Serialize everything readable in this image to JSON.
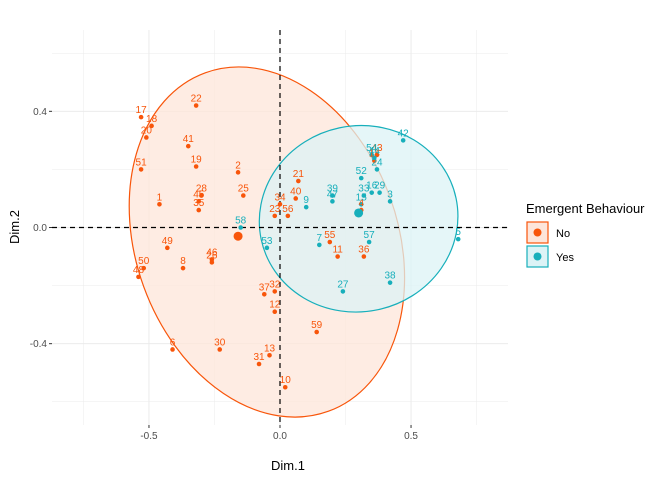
{
  "chart_data": {
    "type": "scatter",
    "xlabel": "Dim.1",
    "ylabel": "Dim.2",
    "xlim": [
      -0.87,
      0.87
    ],
    "ylim": [
      -0.68,
      0.68
    ],
    "x_ticks": [
      -0.5,
      0.0,
      0.5
    ],
    "x_tick_labels": [
      "-0.5",
      "0.0",
      "0.5"
    ],
    "y_ticks": [
      -0.4,
      0.0,
      0.4
    ],
    "y_tick_labels": [
      "-0.4",
      "0.0",
      "0.4"
    ],
    "grid": true,
    "reference_lines": {
      "x": 0,
      "y": 0,
      "style": "dashed"
    },
    "legend": {
      "title": "Emergent Behaviour",
      "position": "right",
      "entries": [
        {
          "label": "No",
          "color": "#F8550A",
          "fill": "#FDE5DA"
        },
        {
          "label": "Yes",
          "color": "#17AFBB",
          "fill": "#DCF3F6"
        }
      ]
    },
    "series": [
      {
        "name": "No",
        "color": "#F8550A",
        "centroid": [
          -0.16,
          -0.03
        ],
        "ellipse": {
          "center": [
            -0.05,
            -0.05
          ],
          "rx": 0.5,
          "ry": 0.62,
          "angle_deg": -20
        },
        "points": [
          {
            "label": "1",
            "x": -0.46,
            "y": 0.08
          },
          {
            "label": "2",
            "x": -0.16,
            "y": 0.19
          },
          {
            "label": "4",
            "x": 0.31,
            "y": 0.06
          },
          {
            "label": "6",
            "x": -0.41,
            "y": -0.42
          },
          {
            "label": "8",
            "x": -0.37,
            "y": -0.14
          },
          {
            "label": "10",
            "x": 0.02,
            "y": -0.55
          },
          {
            "label": "11",
            "x": 0.22,
            "y": -0.1
          },
          {
            "label": "12",
            "x": -0.02,
            "y": -0.29
          },
          {
            "label": "13",
            "x": -0.04,
            "y": -0.44
          },
          {
            "label": "14",
            "x": 0.36,
            "y": 0.23
          },
          {
            "label": "17",
            "x": -0.53,
            "y": 0.38
          },
          {
            "label": "18",
            "x": -0.49,
            "y": 0.35
          },
          {
            "label": "19",
            "x": -0.32,
            "y": 0.21
          },
          {
            "label": "20",
            "x": -0.51,
            "y": 0.31
          },
          {
            "label": "21",
            "x": 0.07,
            "y": 0.16
          },
          {
            "label": "22",
            "x": -0.32,
            "y": 0.42
          },
          {
            "label": "23",
            "x": -0.02,
            "y": 0.04
          },
          {
            "label": "25",
            "x": -0.14,
            "y": 0.11
          },
          {
            "label": "26",
            "x": -0.26,
            "y": -0.12
          },
          {
            "label": "28",
            "x": -0.3,
            "y": 0.11
          },
          {
            "label": "30",
            "x": -0.23,
            "y": -0.42
          },
          {
            "label": "31",
            "x": -0.08,
            "y": -0.47
          },
          {
            "label": "32",
            "x": -0.02,
            "y": -0.22
          },
          {
            "label": "34",
            "x": 0.0,
            "y": 0.08
          },
          {
            "label": "35",
            "x": -0.31,
            "y": 0.06
          },
          {
            "label": "36",
            "x": 0.32,
            "y": -0.1
          },
          {
            "label": "37",
            "x": -0.06,
            "y": -0.23
          },
          {
            "label": "40",
            "x": 0.06,
            "y": 0.1
          },
          {
            "label": "41",
            "x": -0.35,
            "y": 0.28
          },
          {
            "label": "43",
            "x": 0.37,
            "y": 0.25
          },
          {
            "label": "45",
            "x": -0.31,
            "y": 0.09
          },
          {
            "label": "46",
            "x": -0.26,
            "y": -0.11
          },
          {
            "label": "48",
            "x": -0.54,
            "y": -0.17
          },
          {
            "label": "49",
            "x": -0.43,
            "y": -0.07
          },
          {
            "label": "50",
            "x": -0.52,
            "y": -0.14
          },
          {
            "label": "51",
            "x": -0.53,
            "y": 0.2
          },
          {
            "label": "55",
            "x": 0.19,
            "y": -0.05
          },
          {
            "label": "56",
            "x": 0.03,
            "y": 0.04
          },
          {
            "label": "59",
            "x": 0.14,
            "y": -0.36
          }
        ]
      },
      {
        "name": "Yes",
        "color": "#17AFBB",
        "centroid": [
          0.3,
          0.05
        ],
        "ellipse": {
          "center": [
            0.3,
            0.03
          ],
          "rx": 0.38,
          "ry": 0.32,
          "angle_deg": -12
        },
        "points": [
          {
            "label": "3",
            "x": 0.42,
            "y": 0.09
          },
          {
            "label": "5",
            "x": 0.68,
            "y": -0.04
          },
          {
            "label": "7",
            "x": 0.15,
            "y": -0.06
          },
          {
            "label": "9",
            "x": 0.1,
            "y": 0.07
          },
          {
            "label": "15",
            "x": 0.31,
            "y": 0.08
          },
          {
            "label": "16",
            "x": 0.35,
            "y": 0.12
          },
          {
            "label": "24",
            "x": 0.37,
            "y": 0.2
          },
          {
            "label": "27",
            "x": 0.24,
            "y": -0.22
          },
          {
            "label": "29",
            "x": 0.38,
            "y": 0.12
          },
          {
            "label": "33",
            "x": 0.32,
            "y": 0.11
          },
          {
            "label": "38",
            "x": 0.42,
            "y": -0.19
          },
          {
            "label": "39",
            "x": 0.2,
            "y": 0.11
          },
          {
            "label": "42",
            "x": 0.47,
            "y": 0.3
          },
          {
            "label": "44",
            "x": 0.36,
            "y": 0.24
          },
          {
            "label": "47",
            "x": 0.2,
            "y": 0.09
          },
          {
            "label": "52",
            "x": 0.31,
            "y": 0.17
          },
          {
            "label": "53",
            "x": -0.05,
            "y": -0.07
          },
          {
            "label": "54",
            "x": 0.35,
            "y": 0.25
          },
          {
            "label": "57",
            "x": 0.34,
            "y": -0.05
          },
          {
            "label": "58",
            "x": -0.15,
            "y": 0.0
          }
        ]
      }
    ]
  }
}
